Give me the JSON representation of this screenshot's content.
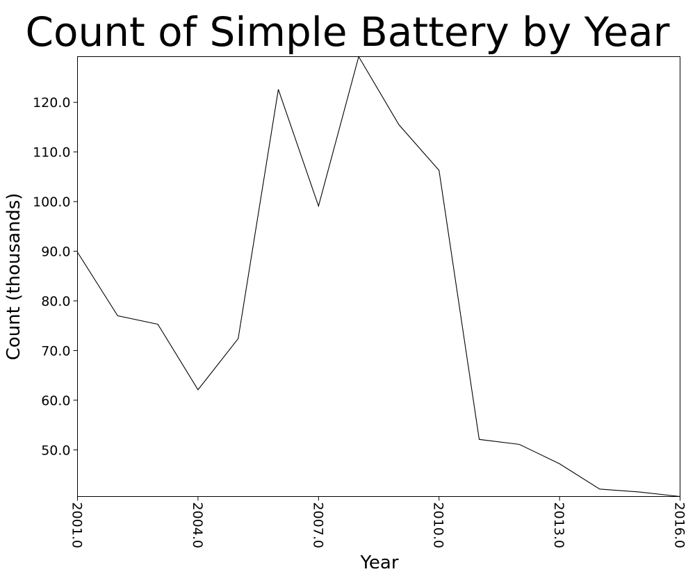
{
  "chart_data": {
    "type": "line",
    "title": "Count of Simple Battery by Year",
    "xlabel": "Year",
    "ylabel": "Count (thousands)",
    "x": [
      2001,
      2002,
      2003,
      2004,
      2005,
      2006,
      2007,
      2008,
      2009,
      2010,
      2011,
      2012,
      2013,
      2014,
      2015,
      2016
    ],
    "series": [
      {
        "values": [
          89.8,
          77.0,
          75.3,
          62.1,
          72.4,
          122.6,
          99.1,
          129.2,
          115.5,
          106.3,
          52.1,
          51.1,
          47.2,
          42.1,
          41.5,
          40.6
        ]
      }
    ],
    "xlim": [
      2001,
      2016
    ],
    "ylim": [
      40.6,
      129.2
    ],
    "xticks": [
      2001,
      2004,
      2007,
      2010,
      2013,
      2016
    ],
    "xtick_labels": [
      "2001.0",
      "2004.0",
      "2007.0",
      "2010.0",
      "2013.0",
      "2016.0"
    ],
    "yticks": [
      50,
      60,
      70,
      80,
      90,
      100,
      110,
      120
    ],
    "ytick_labels": [
      "50.0",
      "60.0",
      "70.0",
      "80.0",
      "90.0",
      "100.0",
      "110.0",
      "120.0"
    ],
    "grid": false,
    "line_color": "#000000"
  }
}
